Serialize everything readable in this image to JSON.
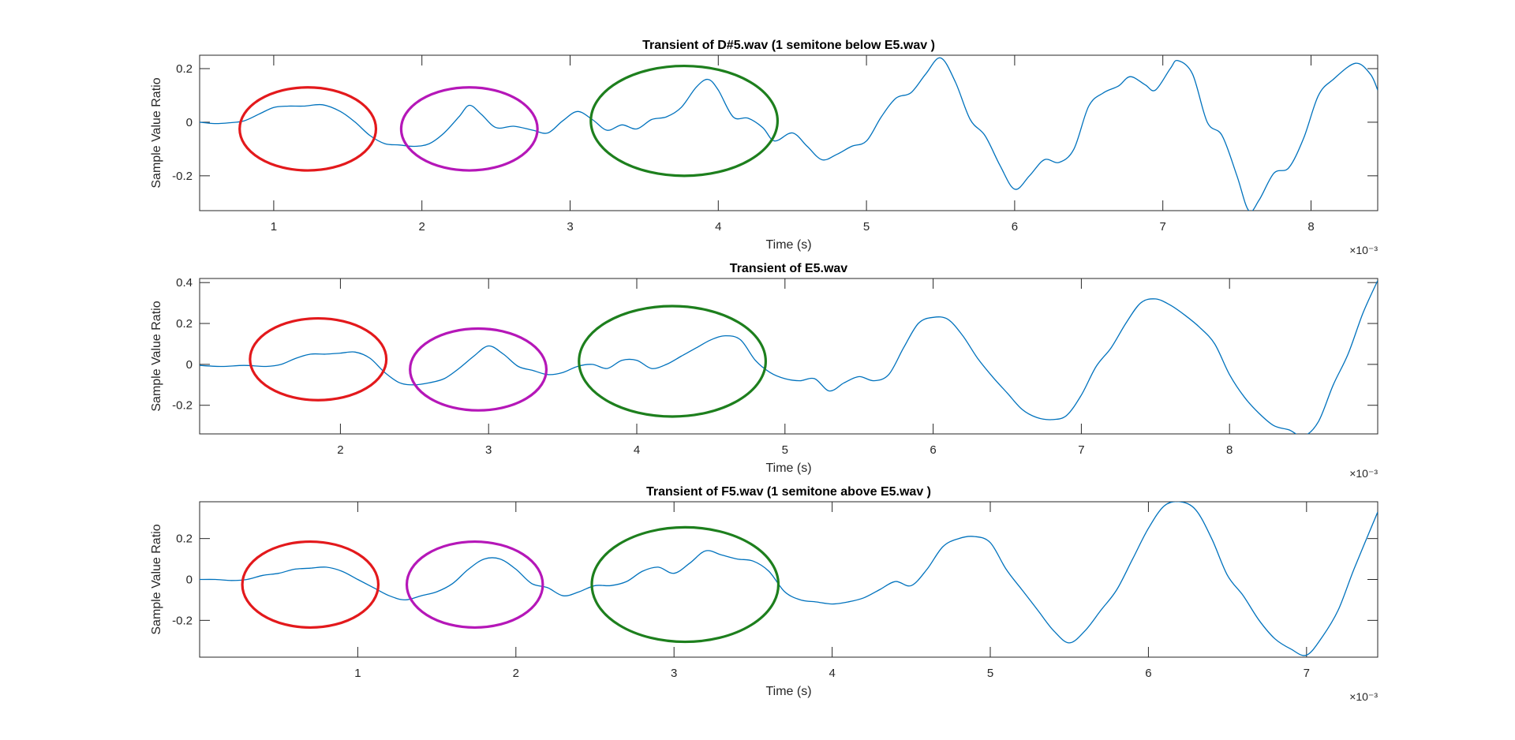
{
  "chart_data": [
    {
      "type": "line",
      "title": "Transient of D#5.wav (1 semitone below E5.wav )",
      "xlabel": "Time (s)",
      "ylabel": "Sample Value Ratio",
      "x_exponent": "×10⁻³",
      "x_scale": 0.001,
      "xlim": [
        0.5,
        8.45
      ],
      "ylim": [
        -0.33,
        0.25
      ],
      "xticks": [
        1,
        2,
        3,
        4,
        5,
        6,
        7,
        8
      ],
      "xtick_labels": [
        "1",
        "2",
        "3",
        "4",
        "5",
        "6",
        "7",
        "8"
      ],
      "yticks": [
        -0.2,
        0,
        0.2
      ],
      "ytick_labels": [
        "-0.2",
        "0",
        "0.2"
      ],
      "grid": false,
      "series": [
        {
          "color": "#0072BD",
          "x": [
            0.5,
            0.6,
            0.7,
            0.8,
            0.9,
            1.0,
            1.1,
            1.2,
            1.33,
            1.45,
            1.55,
            1.65,
            1.75,
            1.85,
            1.95,
            2.05,
            2.15,
            2.25,
            2.32,
            2.4,
            2.5,
            2.62,
            2.75,
            2.85,
            2.95,
            3.05,
            3.15,
            3.25,
            3.35,
            3.45,
            3.55,
            3.65,
            3.75,
            3.85,
            3.93,
            4.0,
            4.1,
            4.2,
            4.3,
            4.38,
            4.5,
            4.6,
            4.7,
            4.8,
            4.9,
            5.0,
            5.1,
            5.2,
            5.3,
            5.4,
            5.5,
            5.6,
            5.7,
            5.8,
            5.9,
            6.0,
            6.1,
            6.2,
            6.3,
            6.4,
            6.5,
            6.6,
            6.7,
            6.78,
            6.88,
            6.95,
            7.05,
            7.1,
            7.2,
            7.3,
            7.4,
            7.5,
            7.58,
            7.65,
            7.75,
            7.85,
            7.95,
            8.05,
            8.15,
            8.3,
            8.4,
            8.45
          ],
          "y": [
            0.0,
            -0.005,
            -0.002,
            0.005,
            0.03,
            0.055,
            0.06,
            0.06,
            0.065,
            0.04,
            0.0,
            -0.05,
            -0.08,
            -0.085,
            -0.09,
            -0.08,
            -0.04,
            0.02,
            0.063,
            0.03,
            -0.02,
            -0.015,
            -0.03,
            -0.04,
            0.005,
            0.04,
            0.01,
            -0.03,
            -0.01,
            -0.025,
            0.01,
            0.02,
            0.055,
            0.13,
            0.16,
            0.12,
            0.02,
            0.015,
            -0.02,
            -0.07,
            -0.04,
            -0.09,
            -0.14,
            -0.12,
            -0.09,
            -0.07,
            0.02,
            0.09,
            0.11,
            0.18,
            0.24,
            0.15,
            0.01,
            -0.05,
            -0.16,
            -0.25,
            -0.2,
            -0.14,
            -0.15,
            -0.1,
            0.06,
            0.11,
            0.135,
            0.17,
            0.14,
            0.12,
            0.2,
            0.23,
            0.18,
            0.0,
            -0.05,
            -0.2,
            -0.33,
            -0.29,
            -0.19,
            -0.17,
            -0.06,
            0.1,
            0.16,
            0.22,
            0.18,
            0.12
          ]
        }
      ],
      "annotations": [
        {
          "shape": "ellipse",
          "color": "#E3191C",
          "cx": 1.23,
          "cy": -0.025,
          "rx": 0.46,
          "ry": 0.155
        },
        {
          "shape": "ellipse",
          "color": "#B517B8",
          "cx": 2.32,
          "cy": -0.025,
          "rx": 0.46,
          "ry": 0.155
        },
        {
          "shape": "ellipse",
          "color": "#1D7F1D",
          "cx": 3.77,
          "cy": 0.005,
          "rx": 0.63,
          "ry": 0.205
        }
      ]
    },
    {
      "type": "line",
      "title": "Transient of E5.wav",
      "xlabel": "Time (s)",
      "ylabel": "Sample Value Ratio",
      "x_exponent": "×10⁻³",
      "x_scale": 0.001,
      "xlim": [
        1.05,
        9.0
      ],
      "ylim": [
        -0.34,
        0.42
      ],
      "xticks": [
        2,
        3,
        4,
        5,
        6,
        7,
        8
      ],
      "xtick_labels": [
        "2",
        "3",
        "4",
        "5",
        "6",
        "7",
        "8"
      ],
      "yticks": [
        -0.2,
        0,
        0.2,
        0.4
      ],
      "ytick_labels": [
        "-0.2",
        "0",
        "0.2",
        "0.4"
      ],
      "grid": false,
      "series": [
        {
          "color": "#0072BD",
          "x": [
            1.05,
            1.2,
            1.35,
            1.5,
            1.6,
            1.7,
            1.8,
            1.9,
            2.0,
            2.1,
            2.2,
            2.3,
            2.4,
            2.5,
            2.6,
            2.7,
            2.8,
            2.9,
            3.0,
            3.1,
            3.2,
            3.3,
            3.4,
            3.5,
            3.6,
            3.7,
            3.8,
            3.9,
            4.0,
            4.1,
            4.2,
            4.3,
            4.4,
            4.5,
            4.6,
            4.7,
            4.8,
            4.9,
            5.0,
            5.1,
            5.2,
            5.3,
            5.4,
            5.5,
            5.6,
            5.7,
            5.8,
            5.9,
            6.0,
            6.1,
            6.2,
            6.3,
            6.4,
            6.5,
            6.6,
            6.7,
            6.8,
            6.9,
            7.0,
            7.1,
            7.2,
            7.3,
            7.4,
            7.5,
            7.6,
            7.7,
            7.8,
            7.9,
            8.0,
            8.1,
            8.2,
            8.3,
            8.4,
            8.5,
            8.6,
            8.7,
            8.8,
            8.9,
            9.0
          ],
          "y": [
            -0.005,
            -0.01,
            -0.005,
            -0.01,
            0.0,
            0.03,
            0.05,
            0.05,
            0.055,
            0.06,
            0.03,
            -0.04,
            -0.09,
            -0.1,
            -0.09,
            -0.07,
            -0.02,
            0.04,
            0.09,
            0.05,
            -0.01,
            -0.03,
            -0.05,
            -0.04,
            -0.01,
            0.0,
            -0.02,
            0.02,
            0.02,
            -0.02,
            0.0,
            0.04,
            0.08,
            0.12,
            0.14,
            0.12,
            0.02,
            -0.04,
            -0.07,
            -0.08,
            -0.07,
            -0.13,
            -0.09,
            -0.06,
            -0.08,
            -0.05,
            0.08,
            0.2,
            0.23,
            0.22,
            0.14,
            0.03,
            -0.06,
            -0.14,
            -0.22,
            -0.26,
            -0.27,
            -0.25,
            -0.15,
            -0.01,
            0.08,
            0.2,
            0.3,
            0.32,
            0.29,
            0.24,
            0.18,
            0.1,
            -0.05,
            -0.16,
            -0.24,
            -0.3,
            -0.32,
            -0.35,
            -0.28,
            -0.1,
            0.05,
            0.25,
            0.41
          ]
        }
      ],
      "annotations": [
        {
          "shape": "ellipse",
          "color": "#E3191C",
          "cx": 1.85,
          "cy": 0.025,
          "rx": 0.46,
          "ry": 0.2
        },
        {
          "shape": "ellipse",
          "color": "#B517B8",
          "cx": 2.93,
          "cy": -0.025,
          "rx": 0.46,
          "ry": 0.2
        },
        {
          "shape": "ellipse",
          "color": "#1D7F1D",
          "cx": 4.24,
          "cy": 0.015,
          "rx": 0.63,
          "ry": 0.27
        }
      ]
    },
    {
      "type": "line",
      "title": "Transient of F5.wav (1 semitone above E5.wav )",
      "xlabel": "Time (s)",
      "ylabel": "Sample Value Ratio",
      "x_exponent": "×10⁻³",
      "x_scale": 0.001,
      "xlim": [
        0.0,
        7.45
      ],
      "ylim": [
        -0.38,
        0.38
      ],
      "xticks": [
        1,
        2,
        3,
        4,
        5,
        6,
        7
      ],
      "xtick_labels": [
        "1",
        "2",
        "3",
        "4",
        "5",
        "6",
        "7"
      ],
      "yticks": [
        -0.2,
        0,
        0.2
      ],
      "ytick_labels": [
        "-0.2",
        "0",
        "0.2"
      ],
      "grid": false,
      "series": [
        {
          "color": "#0072BD",
          "x": [
            0.0,
            0.1,
            0.2,
            0.3,
            0.4,
            0.5,
            0.6,
            0.7,
            0.8,
            0.9,
            1.0,
            1.1,
            1.2,
            1.3,
            1.4,
            1.5,
            1.6,
            1.7,
            1.8,
            1.9,
            2.0,
            2.1,
            2.2,
            2.3,
            2.4,
            2.5,
            2.6,
            2.7,
            2.8,
            2.9,
            3.0,
            3.1,
            3.2,
            3.3,
            3.4,
            3.5,
            3.6,
            3.7,
            3.8,
            3.9,
            4.0,
            4.1,
            4.2,
            4.3,
            4.4,
            4.5,
            4.6,
            4.7,
            4.8,
            4.9,
            5.0,
            5.1,
            5.2,
            5.3,
            5.4,
            5.5,
            5.6,
            5.7,
            5.8,
            5.9,
            6.0,
            6.1,
            6.2,
            6.3,
            6.4,
            6.5,
            6.6,
            6.7,
            6.8,
            6.9,
            7.0,
            7.1,
            7.2,
            7.3,
            7.45
          ],
          "y": [
            0.0,
            0.0,
            -0.005,
            0.0,
            0.02,
            0.03,
            0.05,
            0.055,
            0.06,
            0.04,
            0.0,
            -0.04,
            -0.08,
            -0.1,
            -0.08,
            -0.06,
            -0.02,
            0.05,
            0.1,
            0.1,
            0.05,
            -0.02,
            -0.04,
            -0.08,
            -0.06,
            -0.03,
            -0.03,
            -0.01,
            0.04,
            0.06,
            0.03,
            0.08,
            0.14,
            0.12,
            0.1,
            0.09,
            0.04,
            -0.06,
            -0.1,
            -0.11,
            -0.12,
            -0.11,
            -0.09,
            -0.05,
            -0.01,
            -0.03,
            0.05,
            0.16,
            0.2,
            0.21,
            0.18,
            0.05,
            -0.05,
            -0.15,
            -0.25,
            -0.31,
            -0.25,
            -0.15,
            -0.05,
            0.1,
            0.25,
            0.36,
            0.38,
            0.34,
            0.2,
            0.02,
            -0.08,
            -0.2,
            -0.29,
            -0.34,
            -0.37,
            -0.28,
            -0.15,
            0.05,
            0.33
          ]
        }
      ],
      "annotations": [
        {
          "shape": "ellipse",
          "color": "#E3191C",
          "cx": 0.7,
          "cy": -0.025,
          "rx": 0.43,
          "ry": 0.21
        },
        {
          "shape": "ellipse",
          "color": "#B517B8",
          "cx": 1.74,
          "cy": -0.025,
          "rx": 0.43,
          "ry": 0.21
        },
        {
          "shape": "ellipse",
          "color": "#1D7F1D",
          "cx": 3.07,
          "cy": -0.025,
          "rx": 0.59,
          "ry": 0.28
        }
      ]
    }
  ]
}
